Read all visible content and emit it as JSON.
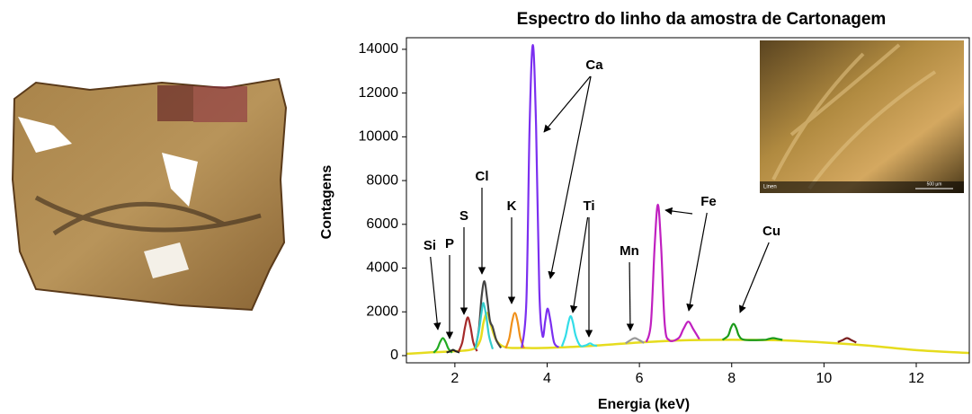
{
  "chart_data": {
    "type": "line",
    "title": "Espectro do linho da amostra de Cartonagem",
    "x_label": "Energia (keV)",
    "y_label": "Contagens",
    "xlim": [
      0.95,
      13.15
    ],
    "ylim": [
      -330,
      14530
    ],
    "xticks": [
      2,
      4,
      6,
      8,
      10,
      12
    ],
    "yticks": [
      0,
      2000,
      4000,
      6000,
      8000,
      10000,
      12000,
      14000
    ],
    "series": [
      {
        "color": "#e6dc1e",
        "x": [
          0.95,
          1.5,
          2,
          2.4,
          2.55,
          2.62,
          2.7,
          2.78,
          2.9,
          3.1,
          3.5,
          4,
          5,
          6,
          7,
          8,
          9,
          10,
          11,
          12,
          13.15
        ],
        "values": [
          80,
          150,
          200,
          300,
          700,
          1500,
          1950,
          1400,
          700,
          380,
          350,
          350,
          450,
          600,
          700,
          720,
          700,
          600,
          450,
          250,
          120
        ]
      },
      {
        "color": "#22aa22",
        "x": [
          1.54,
          1.62,
          1.68,
          1.74,
          1.8,
          1.86,
          1.94
        ],
        "values": [
          130,
          320,
          620,
          800,
          620,
          320,
          130
        ]
      },
      {
        "color": "#222222",
        "x": [
          1.82,
          1.9,
          1.96,
          2.02,
          2.1
        ],
        "values": [
          140,
          200,
          260,
          200,
          140
        ]
      },
      {
        "color": "#a52a2a",
        "x": [
          2.08,
          2.16,
          2.22,
          2.28,
          2.34,
          2.4,
          2.48
        ],
        "values": [
          180,
          600,
          1300,
          1750,
          1300,
          600,
          200
        ]
      },
      {
        "color": "#444444",
        "x": [
          2.44,
          2.52,
          2.58,
          2.64,
          2.7,
          2.76,
          2.82,
          2.9,
          3.0
        ],
        "values": [
          300,
          1200,
          2700,
          3400,
          2600,
          1600,
          1300,
          700,
          350
        ]
      },
      {
        "color": "#33cccc",
        "x": [
          2.44,
          2.52,
          2.58,
          2.62,
          2.68,
          2.74,
          2.82
        ],
        "values": [
          300,
          1100,
          2000,
          2400,
          1800,
          900,
          300
        ]
      },
      {
        "color": "#f0901a",
        "x": [
          3.1,
          3.18,
          3.24,
          3.3,
          3.36,
          3.42,
          3.5
        ],
        "values": [
          330,
          800,
          1550,
          1950,
          1550,
          800,
          330
        ]
      },
      {
        "color": "#7b2ff0",
        "x": [
          3.45,
          3.55,
          3.62,
          3.69,
          3.76,
          3.83,
          3.9,
          3.96,
          4.01,
          4.07,
          4.15,
          4.25
        ],
        "values": [
          350,
          2500,
          10500,
          14200,
          10500,
          3000,
          900,
          1600,
          2150,
          1600,
          600,
          380
        ]
      },
      {
        "color": "#33dde8",
        "x": [
          4.32,
          4.4,
          4.46,
          4.51,
          4.56,
          4.62,
          4.72,
          4.85,
          4.93,
          5.0,
          5.08
        ],
        "values": [
          420,
          900,
          1500,
          1800,
          1500,
          900,
          450,
          480,
          560,
          480,
          440
        ]
      },
      {
        "color": "#999999",
        "x": [
          5.7,
          5.8,
          5.9,
          6.0,
          6.1
        ],
        "values": [
          560,
          700,
          800,
          700,
          580
        ]
      },
      {
        "color": "#c020c0",
        "x": [
          6.15,
          6.25,
          6.33,
          6.4,
          6.47,
          6.55,
          6.65,
          6.85,
          6.95,
          7.06,
          7.17,
          7.3
        ],
        "values": [
          620,
          1500,
          5000,
          6900,
          5000,
          1400,
          700,
          800,
          1200,
          1550,
          1200,
          750
        ]
      },
      {
        "color": "#1a9a1a",
        "x": [
          7.8,
          7.92,
          7.98,
          8.04,
          8.1,
          8.16,
          8.28,
          8.7,
          8.8,
          8.9,
          9.0,
          9.1
        ],
        "values": [
          720,
          900,
          1250,
          1450,
          1250,
          900,
          720,
          720,
          760,
          800,
          760,
          720
        ]
      },
      {
        "color": "#7a2020",
        "x": [
          10.3,
          10.4,
          10.5,
          10.6,
          10.7
        ],
        "values": [
          620,
          700,
          800,
          700,
          600
        ]
      }
    ],
    "annotations": [
      "Si",
      "P",
      "S",
      "Cl",
      "K",
      "Ca",
      "Ti",
      "Mn",
      "Fe",
      "Cu"
    ]
  },
  "inset_photo": {
    "label": "Linen",
    "scale": "500 µm"
  }
}
